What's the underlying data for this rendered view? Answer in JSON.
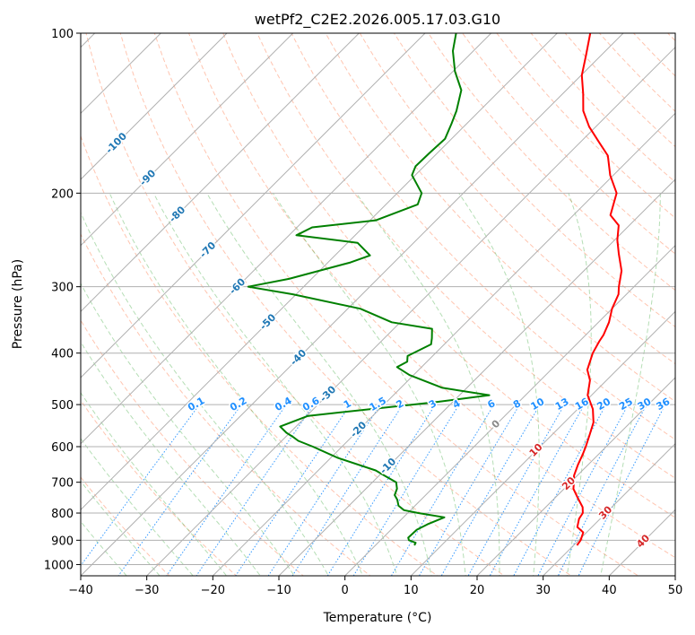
{
  "chart_data": {
    "type": "line",
    "title": "wetPf2_C2E2.2026.005.17.03.G10",
    "xlabel": "Temperature (°C)",
    "ylabel": "Pressure (hPa)",
    "xlim": [
      -40,
      50
    ],
    "ylim": [
      1050,
      100
    ],
    "yscale": "log",
    "x_ticks": [
      "−40",
      "−30",
      "−20",
      "−10",
      "0",
      "10",
      "20",
      "30",
      "40",
      "50"
    ],
    "y_ticks": [
      {
        "p": 100,
        "label": "100"
      },
      {
        "p": 200,
        "label": "200"
      },
      {
        "p": 300,
        "label": "300"
      },
      {
        "p": 400,
        "label": "400"
      },
      {
        "p": 500,
        "label": "500"
      },
      {
        "p": 600,
        "label": "600"
      },
      {
        "p": 700,
        "label": "700"
      },
      {
        "p": 800,
        "label": "800"
      },
      {
        "p": 900,
        "label": "900"
      },
      {
        "p": 1000,
        "label": "1000"
      }
    ],
    "grid": true,
    "skew": 45,
    "colors": {
      "temperature": "#ff0000",
      "dewpoint": "#008000",
      "isotherm": "#b0b0b0",
      "dry_adiabat": "#ff7f50",
      "moist_adiabat": "#2ca02c",
      "mixing_ratio": "#1f8fff",
      "isotherm_label": "#1f77b4",
      "dry_label": "#d62728"
    },
    "series": [
      {
        "name": "temperature",
        "points": [
          [
            30.5,
            920
          ],
          [
            30.3,
            900
          ],
          [
            29.5,
            870
          ],
          [
            27.8,
            850
          ],
          [
            26.8,
            820
          ],
          [
            26.5,
            800
          ],
          [
            25.6,
            780
          ],
          [
            23.5,
            750
          ],
          [
            21.4,
            720
          ],
          [
            20.5,
            700
          ],
          [
            19.5,
            680
          ],
          [
            18.5,
            650
          ],
          [
            17.6,
            620
          ],
          [
            16.9,
            600
          ],
          [
            15.7,
            570
          ],
          [
            14.4,
            540
          ],
          [
            12.3,
            510
          ],
          [
            9.4,
            480
          ],
          [
            7.5,
            450
          ],
          [
            5.5,
            430
          ],
          [
            3.8,
            400
          ],
          [
            3.0,
            380
          ],
          [
            2.7,
            370
          ],
          [
            1.6,
            350
          ],
          [
            0.0,
            330
          ],
          [
            -1.2,
            310
          ],
          [
            -2.3,
            300
          ],
          [
            -4.3,
            280
          ],
          [
            -7.3,
            260
          ],
          [
            -9.6,
            245
          ],
          [
            -11.6,
            230
          ],
          [
            -14.4,
            220
          ],
          [
            -16.8,
            200
          ],
          [
            -20.5,
            185
          ],
          [
            -23.8,
            170
          ],
          [
            -27.3,
            160
          ],
          [
            -31.0,
            150
          ],
          [
            -34.3,
            140
          ],
          [
            -36.9,
            130
          ],
          [
            -39.9,
            120
          ],
          [
            -42.3,
            110
          ],
          [
            -45.0,
            100
          ]
        ]
      },
      {
        "name": "dewpoint",
        "points": [
          [
            5.9,
            920
          ],
          [
            5.7,
            910
          ],
          [
            4.3,
            900
          ],
          [
            3.8,
            890
          ],
          [
            3.9,
            860
          ],
          [
            4.7,
            840
          ],
          [
            6.2,
            815
          ],
          [
            1.6,
            800
          ],
          [
            -1.0,
            790
          ],
          [
            -2.5,
            775
          ],
          [
            -3.6,
            755
          ],
          [
            -4.7,
            740
          ],
          [
            -5.3,
            720
          ],
          [
            -6.4,
            700
          ],
          [
            -9.2,
            680
          ],
          [
            -11.3,
            665
          ],
          [
            -18.9,
            630
          ],
          [
            -24.4,
            600
          ],
          [
            -27.5,
            585
          ],
          [
            -28.9,
            575
          ],
          [
            -30.5,
            565
          ],
          [
            -32.4,
            550
          ],
          [
            -29.8,
            525
          ],
          [
            -12.7,
            495
          ],
          [
            -5.5,
            480
          ],
          [
            -13.7,
            465
          ],
          [
            -20.6,
            440
          ],
          [
            -23.7,
            425
          ],
          [
            -23.0,
            415
          ],
          [
            -23.8,
            405
          ],
          [
            -22.0,
            385
          ],
          [
            -22.8,
            375
          ],
          [
            -24.2,
            360
          ],
          [
            -31.3,
            350
          ],
          [
            -38.1,
            330
          ],
          [
            -50.5,
            310
          ],
          [
            -58.4,
            300
          ],
          [
            -53.4,
            290
          ],
          [
            -46.6,
            270
          ],
          [
            -44.7,
            262
          ],
          [
            -48.5,
            248
          ],
          [
            -58.9,
            240
          ],
          [
            -57.7,
            232
          ],
          [
            -49.1,
            225
          ],
          [
            -45.2,
            210
          ],
          [
            -46.3,
            200
          ],
          [
            -50.5,
            185
          ],
          [
            -51.3,
            178
          ],
          [
            -51.2,
            168
          ],
          [
            -51.0,
            158
          ],
          [
            -52.3,
            148
          ],
          [
            -53.5,
            140
          ],
          [
            -55.9,
            128
          ],
          [
            -59.7,
            118
          ],
          [
            -63.1,
            108
          ],
          [
            -65.3,
            100
          ]
        ]
      }
    ],
    "isotherm_labels": [
      "-100",
      "-90",
      "-80",
      "-70",
      "-60",
      "-50",
      "-40",
      "-30",
      "-20",
      "-10"
    ],
    "mixing_ratio_labels": [
      "0.1",
      "0.2",
      "0.4",
      "0.6",
      "1",
      "1.5",
      "2",
      "3",
      "4",
      "6",
      "8",
      "10",
      "13",
      "16",
      "20",
      "25",
      "30",
      "36"
    ],
    "dry_adiabat_labels": [
      "0",
      "10",
      "20",
      "30",
      "40"
    ]
  }
}
